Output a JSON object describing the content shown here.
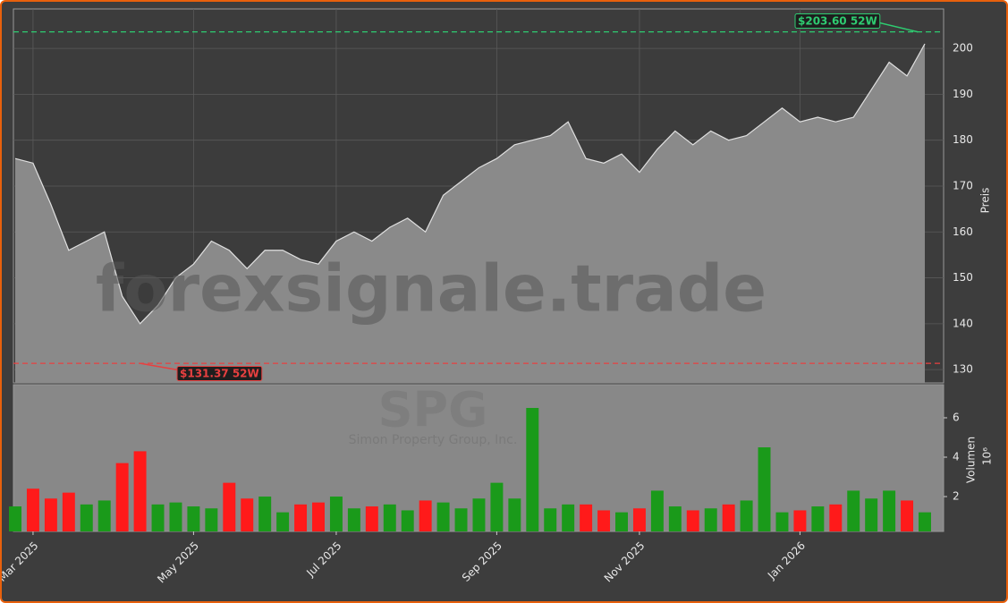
{
  "chart_data": {
    "type": "price-volume",
    "categories": [
      null,
      "Mar 2025",
      null,
      null,
      null,
      null,
      null,
      null,
      null,
      null,
      "May 2025",
      null,
      null,
      null,
      null,
      null,
      null,
      null,
      "Jul 2025",
      null,
      null,
      null,
      null,
      null,
      null,
      null,
      null,
      "Sep 2025",
      null,
      null,
      null,
      null,
      null,
      null,
      null,
      "Nov 2025",
      null,
      null,
      null,
      null,
      null,
      null,
      null,
      null,
      "Jan 2026",
      null,
      null,
      null,
      null,
      null,
      null,
      null
    ],
    "series": [
      {
        "name": "SPG",
        "color": "#8a8a8a",
        "axis": "y",
        "values": [
          176,
          175,
          166,
          156,
          158,
          160,
          146,
          140,
          144,
          150,
          153,
          158,
          156,
          152,
          156,
          156,
          154,
          153,
          158,
          160,
          158,
          161,
          163,
          160,
          168,
          171,
          174,
          176,
          179,
          180,
          181,
          184,
          176,
          175,
          177,
          173,
          178,
          182,
          179,
          182,
          180,
          181,
          184,
          187,
          184,
          185,
          184,
          185,
          191,
          197,
          194,
          201
        ]
      },
      {
        "name": "Volumen",
        "axis": "y2",
        "values": [
          1.5,
          2.4,
          1.9,
          2.2,
          1.6,
          1.8,
          3.7,
          4.3,
          1.6,
          1.7,
          1.5,
          1.4,
          2.7,
          1.9,
          2.0,
          1.2,
          1.6,
          1.7,
          2.0,
          1.4,
          1.5,
          1.6,
          1.3,
          1.8,
          1.7,
          1.4,
          1.9,
          2.7,
          1.9,
          6.5,
          1.4,
          1.6,
          1.6,
          1.3,
          1.2,
          1.4,
          2.3,
          1.5,
          1.3,
          1.4,
          1.6,
          1.8,
          4.5,
          1.2,
          1.3,
          1.5,
          1.6,
          2.3,
          1.9,
          2.3,
          1.8,
          1.2
        ]
      }
    ],
    "up_color": "#1a9a1a",
    "down_color": "#ff1a1a",
    "ylabel": "Preis",
    "y2label": "Volumen",
    "y2_scale_label": "10⁶",
    "ylim": [
      127.1,
      208.6
    ],
    "yticks": [
      130,
      140,
      150,
      160,
      170,
      180,
      190,
      200
    ],
    "y2lim": [
      0.23,
      7.68
    ],
    "y2ticks": [
      2,
      4,
      6
    ],
    "grid": true,
    "high_52w": {
      "value": 203.6,
      "label": "$203.60 52W",
      "color": "#2ecc71"
    },
    "low_52w": {
      "value": 131.37,
      "label": "$131.37 52W",
      "color": "#e84040"
    },
    "watermark": "forexsignale.trade",
    "ticker": "SPG",
    "company": "Simon Property Group, Inc."
  }
}
